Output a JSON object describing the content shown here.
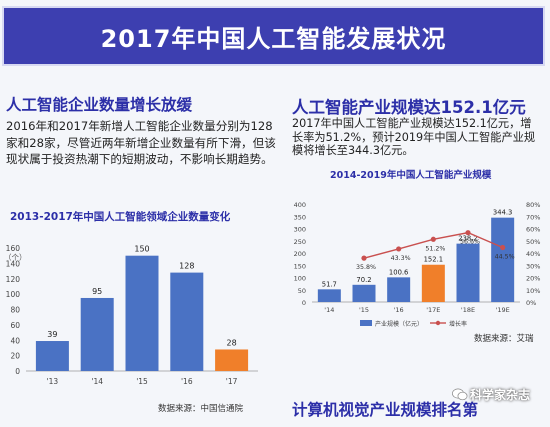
{
  "banner": {
    "title": "2017年中国人工智能发展状况"
  },
  "left": {
    "heading": "人工智能企业数量增长放缓",
    "paragraph": "2016年和2017年新增人工智能企业数量分别为128家和28家，尽管近两年新增企业数量有所下滑，但该现状属于投资热潮下的短期波动，不影响长期趋势。",
    "source": "数据来源：中国信通院"
  },
  "right": {
    "heading": "人工智能产业规模达152.1亿元",
    "paragraph": "2017年中国人工智能产业规模达152.1亿元，增长率为51.2%，预计2019年中国人工智能产业规模将增长至344.3亿元。",
    "source": "数据来源：艾瑞"
  },
  "bottom": {
    "heading": "计算机视觉产业规模排名第"
  },
  "watermark": {
    "text": "科学家杂志"
  },
  "colors": {
    "banner": "#3d3fb0",
    "heading": "#2c2fa8",
    "bar": "#4a72c4",
    "highlight": "#f07f2a",
    "line": "#c9504f"
  },
  "chart_data": [
    {
      "type": "bar",
      "title": "2013-2017年中国人工智能领域企业数量变化",
      "unit": "（个）",
      "categories": [
        "'13",
        "'14",
        "'15",
        "'16",
        "'17"
      ],
      "values": [
        39,
        95,
        150,
        128,
        28
      ],
      "highlight_index": 4,
      "ylim": [
        0,
        160
      ],
      "yticks": [
        0,
        20,
        40,
        60,
        80,
        100,
        120,
        140,
        160
      ],
      "grid": false
    },
    {
      "type": "bar+line",
      "title": "2014-2019年中国人工智能产业规模",
      "categories": [
        "'14",
        "'15",
        "'16",
        "'17E",
        "'18E",
        "'19E"
      ],
      "series": [
        {
          "name": "产业规模（亿元）",
          "type": "bar",
          "values": [
            51.7,
            70.2,
            100.6,
            152.1,
            238.2,
            344.3
          ],
          "labels": [
            "51.7",
            "70.2",
            "100.6",
            "152.1",
            "238.2",
            "344.3"
          ]
        },
        {
          "name": "增长率",
          "type": "line",
          "axis": "right",
          "values": [
            null,
            35.8,
            43.3,
            51.2,
            56.6,
            44.5
          ],
          "labels": [
            "",
            "35.8%",
            "43.3%",
            "51.2%",
            "56.6%",
            "44.5%"
          ]
        }
      ],
      "highlight_index": 3,
      "ylim": [
        0,
        400
      ],
      "yticks": [
        0,
        50,
        100,
        150,
        200,
        250,
        300,
        350,
        400
      ],
      "y2lim": [
        0,
        80
      ],
      "y2ticks": [
        "0%",
        "10%",
        "20%",
        "30%",
        "40%",
        "50%",
        "60%",
        "70%",
        "80%"
      ],
      "legend_position": "bottom",
      "grid": false
    }
  ]
}
